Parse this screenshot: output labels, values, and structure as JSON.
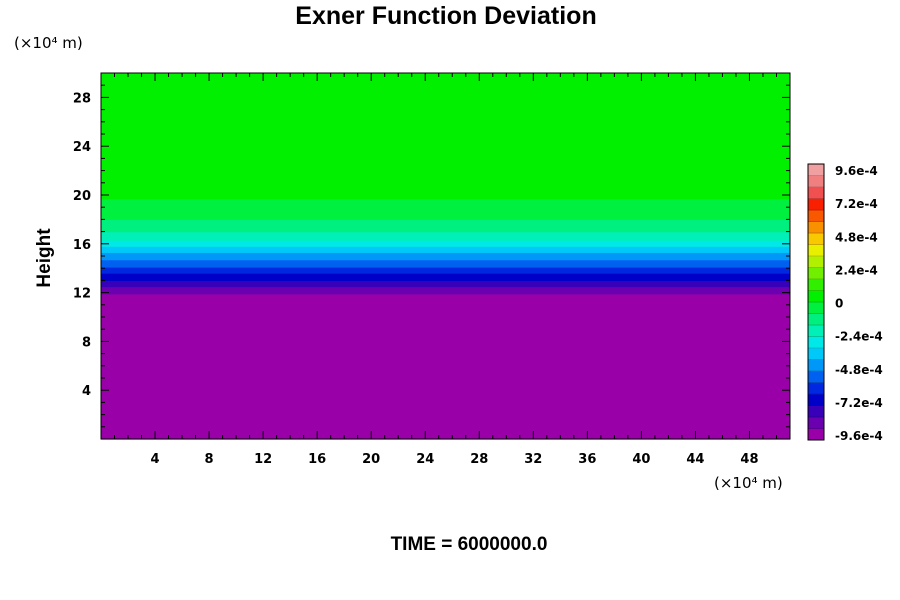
{
  "chart_data": {
    "type": "heatmap",
    "title": "Exner Function Deviation",
    "ylabel": "Height",
    "y_unit": "(×10⁴ m)",
    "x_unit": "(×10⁴ m)",
    "xlim": [
      0,
      51
    ],
    "ylim": [
      0,
      30
    ],
    "x_ticks": [
      "4",
      "8",
      "12",
      "16",
      "20",
      "24",
      "28",
      "32",
      "36",
      "40",
      "44",
      "48"
    ],
    "y_ticks": [
      "4",
      "8",
      "12",
      "16",
      "20",
      "24",
      "28"
    ],
    "colorbar": {
      "range": [
        -0.00096,
        0.00096
      ],
      "labels": [
        "9.6e-4",
        "7.2e-4",
        "4.8e-4",
        "2.4e-4",
        "0",
        "-2.4e-4",
        "-4.8e-4",
        "-7.2e-4",
        "-9.6e-4"
      ],
      "colors": [
        "#9a00a8",
        "#6a00b0",
        "#3800b8",
        "#0000c8",
        "#0028e0",
        "#0060f0",
        "#0098f8",
        "#00c8f8",
        "#00e8e8",
        "#00f0b8",
        "#00f080",
        "#00f040",
        "#00f000",
        "#30f000",
        "#70f000",
        "#b0f000",
        "#e8f000",
        "#f8c800",
        "#f89000",
        "#f85800",
        "#f82000",
        "#f05050",
        "#f08080",
        "#f0a0a0"
      ]
    },
    "profile": {
      "height": [
        0,
        11,
        11.6,
        12.2,
        13,
        14,
        15,
        16,
        17,
        18,
        19,
        20,
        30
      ],
      "value": [
        -0.00096,
        -0.00096,
        -0.00092,
        -0.00085,
        -0.00072,
        -0.00058,
        -0.00044,
        -0.00028,
        -0.00016,
        -8e-05,
        -3e-05,
        1e-05,
        1e-05
      ]
    },
    "grid": false
  },
  "footer": {
    "time_label": "TIME = 6000000.0"
  }
}
